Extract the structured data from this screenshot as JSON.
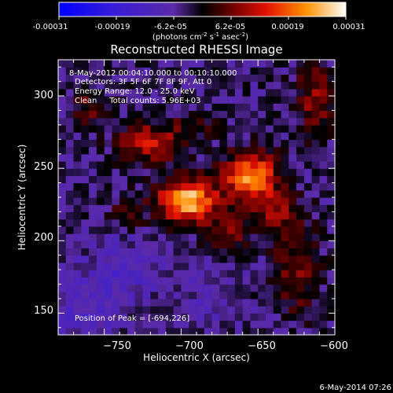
{
  "colorbar": {
    "ticks": [
      "-0.00031",
      "-0.00019",
      "-6.2e-05",
      "6.2e-05",
      "0.00019",
      "0.00031"
    ],
    "range": [
      -0.00031,
      0.00031
    ],
    "unit_text": "(photons cm",
    "unit_sup1": "-2",
    "unit_mid": " s",
    "unit_sup2": "-1",
    "unit_end": " asec",
    "unit_sup3": "-2",
    "unit_close": ")"
  },
  "chart_data": {
    "type": "heatmap",
    "title": "Reconstructed RHESSI Image",
    "xlabel": "Heliocentric X (arcsec)",
    "ylabel": "Heliocentric Y (arcsec)",
    "xlim": [
      -780,
      -600
    ],
    "ylim": [
      135,
      325
    ],
    "x_ticks": [
      -750,
      -700,
      -650,
      -600
    ],
    "y_ticks": [
      150,
      200,
      250,
      300
    ],
    "x_tick_labels": [
      "−750",
      "−700",
      "−650",
      "−600"
    ],
    "y_tick_labels": [
      "150",
      "200",
      "250",
      "300"
    ],
    "peak": [
      -694,
      226
    ],
    "sources": [
      {
        "x": -696,
        "y": 228,
        "amp": 0.00031,
        "sx": 13,
        "sy": 10
      },
      {
        "x": -655,
        "y": 245,
        "amp": 0.00027,
        "sx": 12,
        "sy": 11
      },
      {
        "x": -720,
        "y": 268,
        "amp": 0.00016,
        "sx": 14,
        "sy": 9
      },
      {
        "x": -640,
        "y": 220,
        "amp": 0.00012,
        "sx": 12,
        "sy": 10
      },
      {
        "x": -670,
        "y": 205,
        "amp": 0.0001,
        "sx": 10,
        "sy": 8
      },
      {
        "x": -625,
        "y": 180,
        "amp": 0.00011,
        "sx": 10,
        "sy": 20
      },
      {
        "x": -613,
        "y": 298,
        "amp": 0.00012,
        "sx": 8,
        "sy": 18
      },
      {
        "x": -760,
        "y": 292,
        "amp": 8e-05,
        "sx": 9,
        "sy": 8
      },
      {
        "x": -735,
        "y": 220,
        "amp": 6e-05,
        "sx": 8,
        "sy": 8
      },
      {
        "x": -690,
        "y": 280,
        "amp": 7e-05,
        "sx": 10,
        "sy": 7
      },
      {
        "x": -740,
        "y": 178,
        "amp": -7e-05,
        "sx": 18,
        "sy": 16
      },
      {
        "x": -765,
        "y": 150,
        "amp": -6e-05,
        "sx": 14,
        "sy": 14
      },
      {
        "x": -680,
        "y": 160,
        "amp": -4e-05,
        "sx": 16,
        "sy": 14
      }
    ],
    "annotations": {
      "date_range": "8-May-2012 00:04:10.000 to 00:10:10.000",
      "detectors": "Detectors: 3F 5F 6F 7F 8F 9F, Att 0",
      "energy": "Energy Range: 12.0 - 25.0 keV",
      "clean": "Clean     Total counts: 5.96E+03",
      "peak_text": "Position of Peak = [-694,226]"
    }
  },
  "timestamp": "6-May-2014 07:26"
}
